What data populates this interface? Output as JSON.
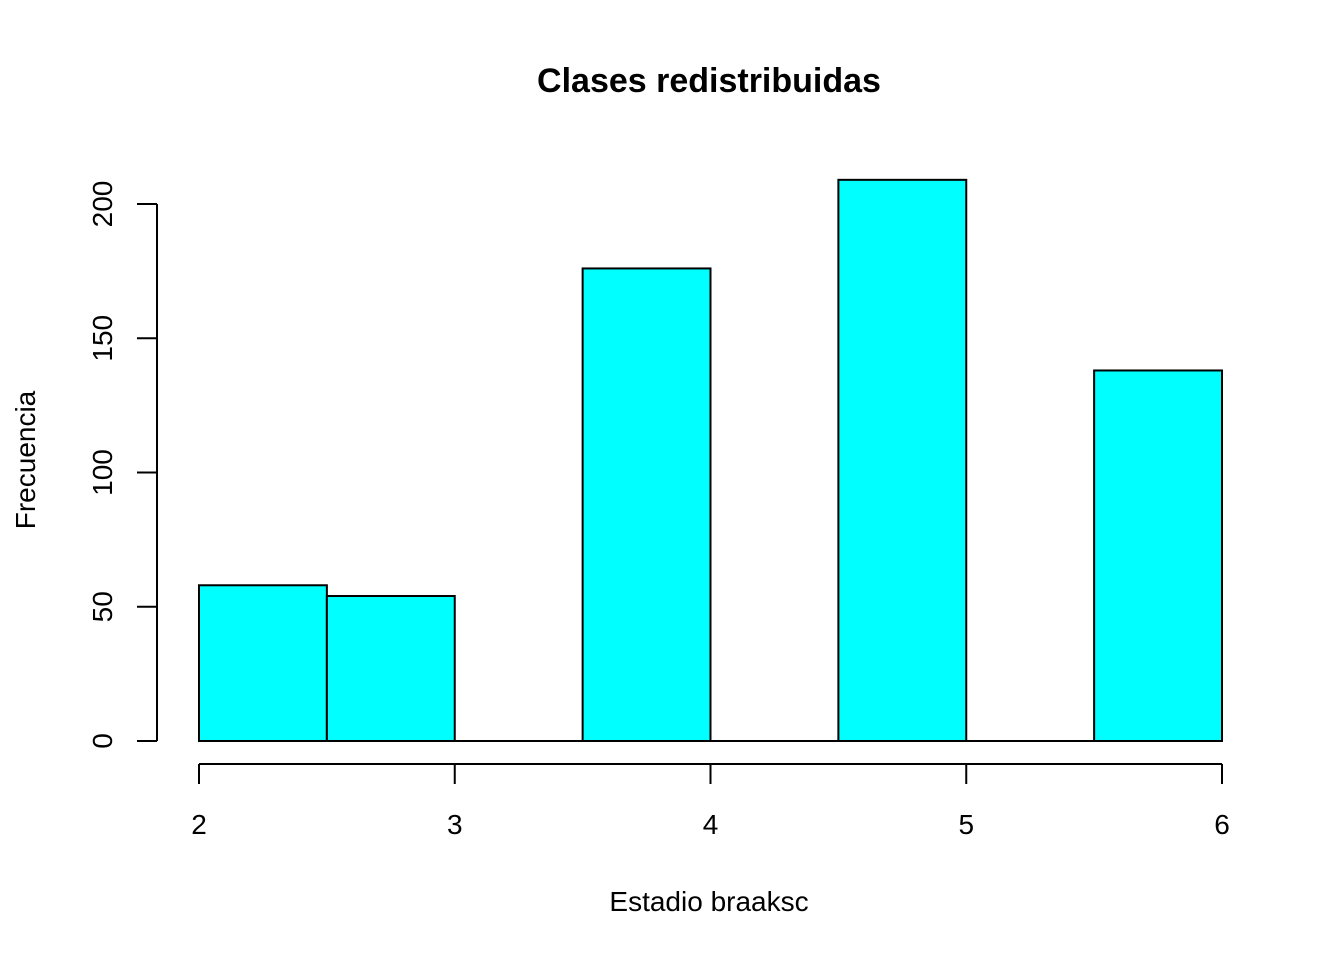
{
  "chart_data": {
    "type": "bar",
    "title": "Clases redistribuidas",
    "xlabel": "Estadio braaksc",
    "ylabel": "Frecuencia",
    "bins": [
      {
        "from": 2.0,
        "to": 2.5,
        "value": 58
      },
      {
        "from": 2.5,
        "to": 3.0,
        "value": 54
      },
      {
        "from": 3.0,
        "to": 3.5,
        "value": 0
      },
      {
        "from": 3.5,
        "to": 4.0,
        "value": 176
      },
      {
        "from": 4.0,
        "to": 4.5,
        "value": 0
      },
      {
        "from": 4.5,
        "to": 5.0,
        "value": 209
      },
      {
        "from": 5.0,
        "to": 5.5,
        "value": 0
      },
      {
        "from": 5.5,
        "to": 6.0,
        "value": 138
      }
    ],
    "xlim": [
      2,
      6
    ],
    "ylim": [
      0,
      200
    ],
    "xticks": [
      "2",
      "3",
      "4",
      "5",
      "6"
    ],
    "yticks": [
      "0",
      "50",
      "100",
      "150",
      "200"
    ],
    "bar_color": "#00ffff",
    "grid": false
  }
}
